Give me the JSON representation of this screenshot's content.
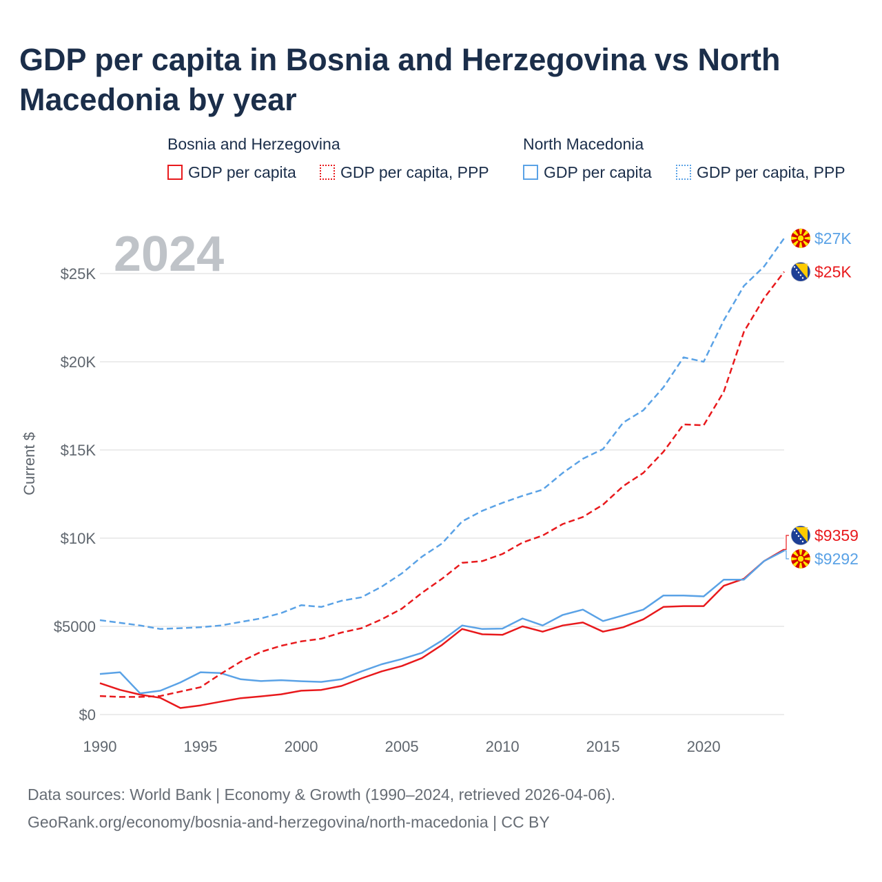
{
  "title": "GDP per capita in Bosnia and Herzegovina vs North Macedonia by year",
  "legend": {
    "groups": [
      {
        "name": "Bosnia and Herzegovina",
        "items": [
          {
            "label": "GDP per capita",
            "style": "solid"
          },
          {
            "label": "GDP per capita, PPP",
            "style": "dotted"
          }
        ]
      },
      {
        "name": "North Macedonia",
        "items": [
          {
            "label": "GDP per capita",
            "style": "solid"
          },
          {
            "label": "GDP per capita, PPP",
            "style": "dotted"
          }
        ]
      }
    ]
  },
  "colors": {
    "bosnia": "#e8191c",
    "macedonia": "#5aa2e6",
    "grid": "#e6e6e6"
  },
  "footer": {
    "line1": "Data sources: World Bank | Economy & Growth (1990–2024, retrieved 2026-04-06).",
    "line2": "GeoRank.org/economy/bosnia-and-herzegovina/north-macedonia | CC BY"
  },
  "chart_data": {
    "type": "line",
    "title": "GDP per capita in Bosnia and Herzegovina vs North Macedonia by year",
    "year_label": "2024",
    "xlabel": "",
    "ylabel": "Current $",
    "xlim": [
      1990,
      2024
    ],
    "ylim": [
      0,
      27500
    ],
    "x_ticks": [
      1990,
      1995,
      2000,
      2005,
      2010,
      2015,
      2020
    ],
    "x_tick_labels": [
      "1990",
      "1995",
      "2000",
      "2005",
      "2010",
      "2015",
      "2020"
    ],
    "y_ticks": [
      0,
      5000,
      10000,
      15000,
      20000,
      25000
    ],
    "y_tick_labels": [
      "$0",
      "$5000",
      "$10K",
      "$15K",
      "$20K",
      "$25K"
    ],
    "x": [
      1990,
      1991,
      1992,
      1993,
      1994,
      1995,
      1996,
      1997,
      1998,
      1999,
      2000,
      2001,
      2002,
      2003,
      2004,
      2005,
      2006,
      2007,
      2008,
      2009,
      2010,
      2011,
      2012,
      2013,
      2014,
      2015,
      2016,
      2017,
      2018,
      2019,
      2020,
      2021,
      2022,
      2023,
      2024
    ],
    "series": [
      {
        "name": "Bosnia and Herzegovina GDP per capita",
        "country": "bosnia",
        "dash": "solid",
        "values": [
          1780,
          1400,
          1130,
          950,
          370,
          520,
          730,
          930,
          1030,
          1150,
          1350,
          1400,
          1620,
          2050,
          2450,
          2750,
          3200,
          3950,
          4850,
          4550,
          4520,
          5000,
          4700,
          5050,
          5220,
          4700,
          4950,
          5400,
          6100,
          6150,
          6150,
          7300,
          7700,
          8700,
          9359
        ],
        "end_label": "$9359"
      },
      {
        "name": "North Macedonia GDP per capita",
        "country": "macedonia",
        "dash": "solid",
        "values": [
          2300,
          2400,
          1200,
          1350,
          1820,
          2400,
          2350,
          2000,
          1900,
          1950,
          1890,
          1850,
          2000,
          2450,
          2850,
          3150,
          3500,
          4200,
          5050,
          4850,
          4870,
          5450,
          5050,
          5650,
          5950,
          5300,
          5620,
          5950,
          6750,
          6750,
          6700,
          7650,
          7650,
          8700,
          9292
        ],
        "end_label": "$9292"
      },
      {
        "name": "Bosnia and Herzegovina GDP per capita, PPP",
        "country": "bosnia",
        "dash": "dashed",
        "values": [
          1050,
          1000,
          1000,
          1050,
          1300,
          1550,
          2300,
          3000,
          3550,
          3900,
          4150,
          4300,
          4650,
          4900,
          5400,
          6000,
          6900,
          7700,
          8600,
          8700,
          9100,
          9750,
          10150,
          10800,
          11200,
          11900,
          12950,
          13700,
          14900,
          16450,
          16400,
          18300,
          21700,
          23600,
          25100
        ],
        "end_label": "$25K"
      },
      {
        "name": "North Macedonia GDP per capita, PPP",
        "country": "macedonia",
        "dash": "dashed",
        "values": [
          5350,
          5200,
          5050,
          4850,
          4900,
          4950,
          5050,
          5250,
          5450,
          5750,
          6200,
          6100,
          6450,
          6650,
          7250,
          8000,
          8950,
          9700,
          10950,
          11550,
          12000,
          12400,
          12750,
          13700,
          14500,
          15050,
          16550,
          17250,
          18550,
          20250,
          20000,
          22350,
          24300,
          25400,
          27000
        ],
        "end_label": "$27K"
      }
    ]
  }
}
